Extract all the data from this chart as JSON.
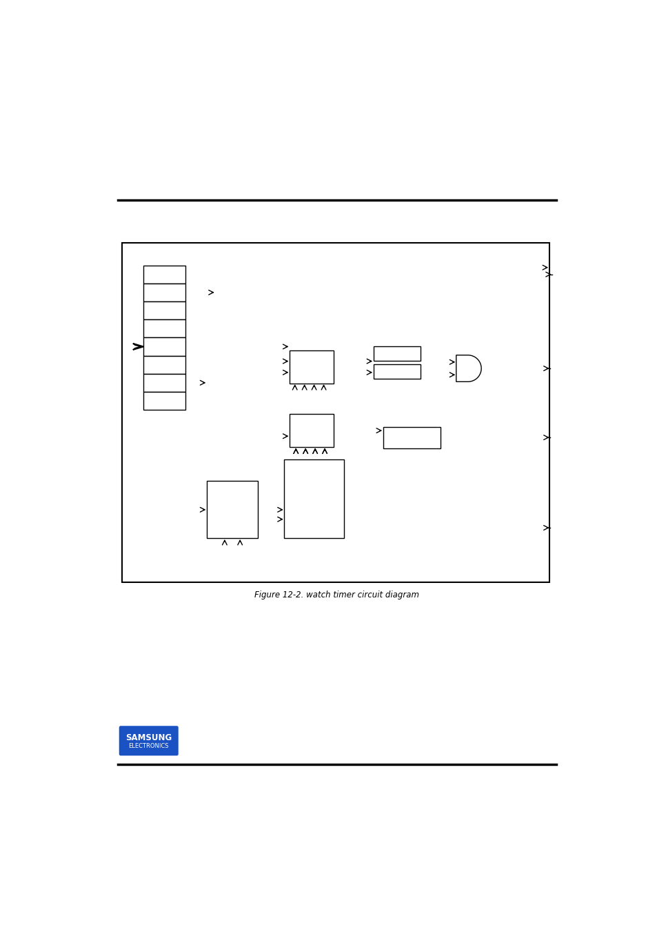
{
  "bg_color": "#ffffff",
  "line_color": "#000000",
  "figure_size": [
    9.54,
    13.51
  ],
  "dpi": 100,
  "title": "Figure 12-2. watch timer circuit diagram"
}
